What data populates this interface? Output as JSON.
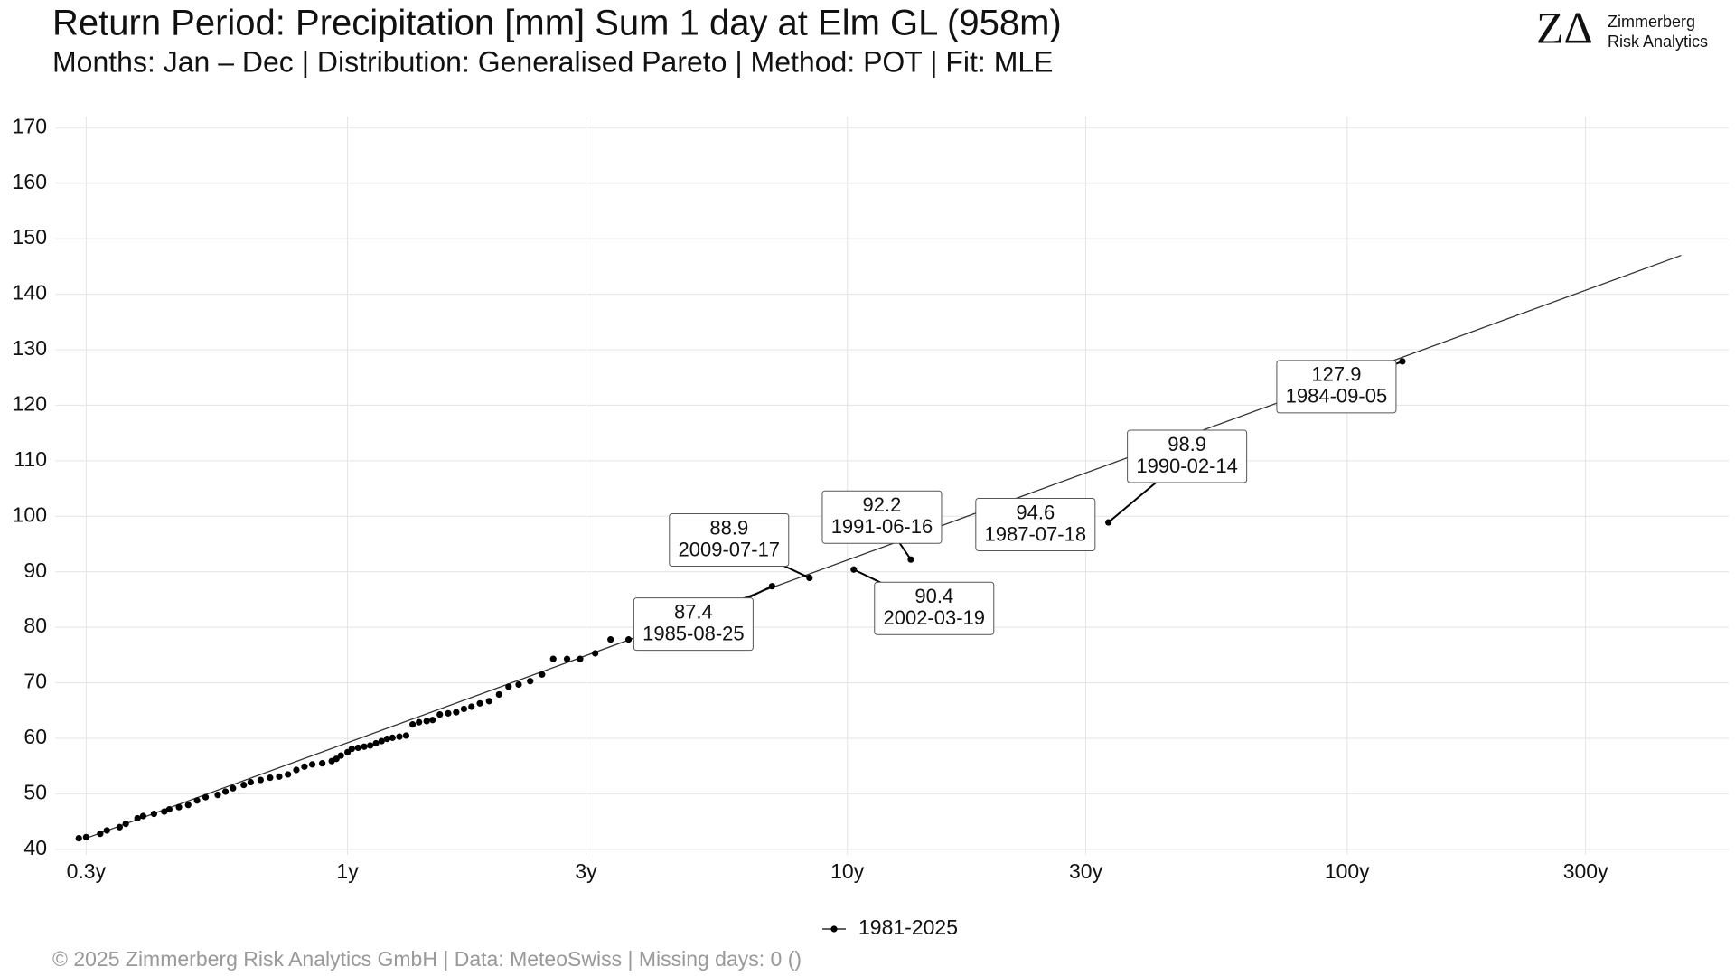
{
  "chart_data": {
    "type": "scatter",
    "title": "Return Period: Precipitation [mm] Sum 1 day at Elm  GL (958m)",
    "subtitle": "Months: Jan – Dec | Distribution: Generalised Pareto | Method: POT | Fit: MLE",
    "logo": {
      "mark": "ZΔ",
      "line1": "Zimmerberg",
      "line2": "Risk Analytics"
    },
    "footer": "©  2025 Zimmerberg Risk Analytics GmbH | Data: MeteoSwiss | Missing days: 0 ()",
    "xscale": "log",
    "xlim": [
      0.26,
      580
    ],
    "ylim": [
      39,
      172
    ],
    "xticks": [
      {
        "value": 0.3,
        "label": "0.3y"
      },
      {
        "value": 1,
        "label": "1y"
      },
      {
        "value": 3,
        "label": "3y"
      },
      {
        "value": 10,
        "label": "10y"
      },
      {
        "value": 30,
        "label": "30y"
      },
      {
        "value": 100,
        "label": "100y"
      },
      {
        "value": 300,
        "label": "300y"
      }
    ],
    "yticks": [
      40,
      50,
      60,
      70,
      80,
      90,
      100,
      110,
      120,
      130,
      140,
      150,
      160,
      170
    ],
    "grid": true,
    "legend": "bottom",
    "fit": {
      "color": "#333333",
      "x": [
        0.3,
        466
      ],
      "values": [
        42,
        147
      ]
    },
    "series": [
      {
        "name": "1981-2025",
        "color": "#000000",
        "x": [
          0.29,
          0.3,
          0.32,
          0.33,
          0.35,
          0.36,
          0.38,
          0.39,
          0.41,
          0.43,
          0.44,
          0.46,
          0.48,
          0.5,
          0.52,
          0.55,
          0.57,
          0.59,
          0.62,
          0.64,
          0.67,
          0.7,
          0.73,
          0.76,
          0.79,
          0.82,
          0.85,
          0.89,
          0.93,
          0.95,
          0.97,
          1.0,
          1.02,
          1.05,
          1.08,
          1.11,
          1.14,
          1.17,
          1.2,
          1.23,
          1.27,
          1.31,
          1.35,
          1.39,
          1.44,
          1.48,
          1.53,
          1.59,
          1.65,
          1.71,
          1.77,
          1.84,
          1.92,
          2.01,
          2.1,
          2.2,
          2.32,
          2.45,
          2.58,
          2.75,
          2.92,
          3.13,
          3.36,
          3.65,
          7.07,
          8.4,
          10.3,
          13.4,
          23.2,
          33.3,
          129
        ],
        "values": [
          42.0,
          42.2,
          42.8,
          43.4,
          44.0,
          44.6,
          45.6,
          46.0,
          46.4,
          46.8,
          47.2,
          47.6,
          48.0,
          48.8,
          49.4,
          49.8,
          50.4,
          51.0,
          51.6,
          52.1,
          52.5,
          52.9,
          53.1,
          53.5,
          54.3,
          54.9,
          55.3,
          55.5,
          55.9,
          56.3,
          56.9,
          57.5,
          58.1,
          58.3,
          58.5,
          58.7,
          59.1,
          59.5,
          59.9,
          60.1,
          60.3,
          60.5,
          62.5,
          62.9,
          63.1,
          63.3,
          64.3,
          64.5,
          64.7,
          65.3,
          65.7,
          66.3,
          66.7,
          67.9,
          69.3,
          69.7,
          70.3,
          71.5,
          74.3,
          74.3,
          74.3,
          75.3,
          77.8,
          77.8,
          87.4,
          88.9,
          90.4,
          92.2,
          94.6,
          98.9,
          127.9
        ],
        "labels": [
          null,
          null,
          null,
          null,
          null,
          null,
          null,
          null,
          null,
          null,
          null,
          null,
          null,
          null,
          null,
          null,
          null,
          null,
          null,
          null,
          null,
          null,
          null,
          null,
          null,
          null,
          null,
          null,
          null,
          null,
          null,
          null,
          null,
          null,
          null,
          null,
          null,
          null,
          null,
          null,
          null,
          null,
          null,
          null,
          null,
          null,
          null,
          null,
          null,
          null,
          null,
          null,
          null,
          null,
          null,
          null,
          null,
          null,
          null,
          null,
          null,
          null,
          null,
          null,
          "1985-08-25",
          "2009-07-17",
          "2002-03-19",
          "1991-06-16",
          "1987-07-18",
          "1990-02-14",
          "1984-09-05"
        ]
      }
    ]
  }
}
